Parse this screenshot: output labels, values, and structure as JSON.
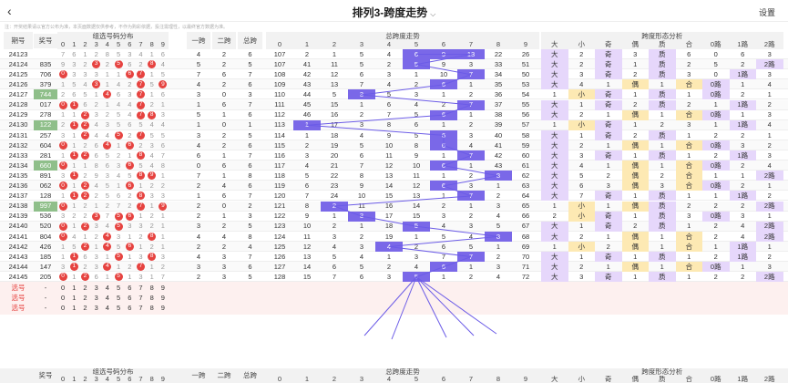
{
  "header": {
    "title": "排列3-跨度走势",
    "back_icon": "‹",
    "title_chevron": "⌵",
    "settings_label": "设置"
  },
  "notice": "注：开奖结果请以官方公布为准，本页面数据仅供参考，不作为购彩依据，投注需理性，以最终官方数据为准。",
  "groups": {
    "digits": "组选号码分布",
    "yikua": "一跨",
    "erkua": "二跨",
    "zongkua": "总跨",
    "trend": "总跨度走势",
    "form": "跨度形态分析"
  },
  "cols": {
    "issue": "期号",
    "award": "奖号",
    "digits": [
      "0",
      "1",
      "2",
      "3",
      "4",
      "5",
      "6",
      "7",
      "8",
      "9"
    ],
    "trend": [
      "0",
      "1",
      "2",
      "3",
      "4",
      "5",
      "6",
      "7",
      "8",
      "9"
    ],
    "form": [
      "大",
      "小",
      "奇",
      "偶",
      "质",
      "合",
      "0路",
      "1路",
      "2路"
    ]
  },
  "rows": [
    {
      "issue": "24123",
      "award": "",
      "d": [
        7,
        6,
        1,
        2,
        8,
        5,
        3,
        4,
        1,
        6
      ],
      "y": "4",
      "e": "2",
      "z": "6",
      "t": [
        107,
        2,
        1,
        5,
        4,
        "6",
        "9",
        "13",
        22,
        26
      ],
      "f": [
        "大",
        "2",
        "奇",
        "3",
        "质",
        "6",
        "0",
        "6",
        "3"
      ]
    },
    {
      "issue": "24124",
      "award": "835",
      "d": [
        9,
        3,
        2,
        "3",
        2,
        "5",
        6,
        2,
        "8",
        4
      ],
      "y": "5",
      "e": "2",
      "z": "5",
      "t": [
        107,
        41,
        11,
        5,
        2,
        "5",
        9,
        3,
        33,
        51
      ],
      "f": [
        "大",
        "2",
        "奇",
        "1",
        "质",
        "2",
        "5",
        "2",
        "2路"
      ]
    },
    {
      "issue": "24125",
      "award": "706",
      "d": [
        "0",
        3,
        3,
        3,
        1,
        1,
        "6",
        "7",
        1,
        5
      ],
      "y": "7",
      "e": "6",
      "z": "7",
      "t": [
        108,
        42,
        12,
        6,
        3,
        1,
        10,
        "7",
        34,
        50
      ],
      "f": [
        "大",
        "3",
        "奇",
        "2",
        "质",
        "3",
        "0",
        "1路",
        "3"
      ]
    },
    {
      "issue": "24126",
      "award": "379",
      "d": [
        1,
        5,
        4,
        "3",
        1,
        4,
        2,
        "7",
        5,
        "9"
      ],
      "y": "4",
      "e": "2",
      "z": "6",
      "t": [
        109,
        43,
        13,
        7,
        4,
        2,
        "6",
        1,
        35,
        53
      ],
      "f": [
        "大",
        "4",
        "1",
        "偶",
        "1",
        "合",
        "0路",
        "1",
        "4"
      ]
    },
    {
      "issue": "24127",
      "award": "744",
      "d": [
        2,
        6,
        5,
        1,
        "4",
        6,
        3,
        "7",
        1,
        6
      ],
      "y": "3",
      "e": "0",
      "z": "3",
      "t": [
        110,
        44,
        5,
        "3",
        5,
        3,
        1,
        2,
        36,
        54
      ],
      "f": [
        "1",
        "小",
        "奇",
        "1",
        "质",
        "1",
        "0路",
        "2",
        "1"
      ]
    },
    {
      "issue": "24128",
      "award": "017",
      "d": [
        "0",
        "1",
        6,
        2,
        1,
        4,
        4,
        "7",
        2,
        1
      ],
      "y": "1",
      "e": "6",
      "z": "7",
      "t": [
        111,
        45,
        15,
        1,
        6,
        4,
        2,
        "7",
        37,
        55
      ],
      "f": [
        "大",
        "1",
        "奇",
        "2",
        "质",
        "2",
        "1",
        "1路",
        "2"
      ]
    },
    {
      "issue": "24129",
      "award": "278",
      "d": [
        1,
        1,
        "2",
        3,
        2,
        5,
        4,
        "7",
        "8",
        3
      ],
      "y": "5",
      "e": "1",
      "z": "6",
      "t": [
        112,
        46,
        16,
        2,
        7,
        5,
        "6",
        1,
        38,
        56
      ],
      "f": [
        "大",
        "2",
        "1",
        "偶",
        "1",
        "合",
        "0路",
        "1",
        "3"
      ]
    },
    {
      "issue": "24130",
      "award": "122",
      "d": [
        2,
        "1",
        "2",
        4,
        3,
        5,
        6,
        5,
        4,
        4
      ],
      "y": "1",
      "e": "0",
      "z": "1",
      "t": [
        113,
        "1",
        17,
        3,
        8,
        6,
        1,
        2,
        39,
        57
      ],
      "f": [
        "1",
        "小",
        "奇",
        "1",
        "2",
        "3",
        "1",
        "1路",
        "4"
      ]
    },
    {
      "issue": "24131",
      "award": "257",
      "d": [
        3,
        1,
        "2",
        4,
        4,
        "5",
        2,
        "7",
        5,
        5
      ],
      "y": "3",
      "e": "2",
      "z": "5",
      "t": [
        114,
        1,
        18,
        4,
        9,
        5,
        "6",
        3,
        40,
        58
      ],
      "f": [
        "大",
        "1",
        "奇",
        "2",
        "质",
        "1",
        "2",
        "2",
        "1"
      ]
    },
    {
      "issue": "24132",
      "award": "604",
      "d": [
        "0",
        1,
        2,
        6,
        "4",
        1,
        "6",
        2,
        3,
        6
      ],
      "y": "4",
      "e": "2",
      "z": "6",
      "t": [
        115,
        2,
        19,
        5,
        10,
        8,
        "6",
        4,
        41,
        59
      ],
      "f": [
        "大",
        "2",
        "1",
        "偶",
        "1",
        "合",
        "0路",
        "3",
        "2"
      ]
    },
    {
      "issue": "24133",
      "award": "281",
      "d": [
        1,
        "1",
        "2",
        6,
        5,
        2,
        1,
        "8",
        4,
        7
      ],
      "y": "6",
      "e": "1",
      "z": "7",
      "t": [
        116,
        3,
        20,
        6,
        11,
        9,
        1,
        "7",
        42,
        60
      ],
      "f": [
        "大",
        "3",
        "奇",
        "1",
        "质",
        "1",
        "2",
        "1路",
        "3"
      ]
    },
    {
      "issue": "24134",
      "award": "660",
      "d": [
        "0",
        1,
        1,
        8,
        6,
        3,
        "6",
        5,
        4,
        8
      ],
      "y": "0",
      "e": "6",
      "z": "6",
      "t": [
        117,
        4,
        21,
        7,
        12,
        10,
        "6",
        1,
        43,
        61
      ],
      "f": [
        "大",
        "4",
        "1",
        "偶",
        "1",
        "合",
        "0路",
        "2",
        "4"
      ]
    },
    {
      "issue": "24135",
      "award": "891",
      "d": [
        3,
        "1",
        2,
        9,
        3,
        4,
        5,
        "8",
        "9",
        1
      ],
      "y": "7",
      "e": "1",
      "z": "8",
      "t": [
        118,
        5,
        22,
        8,
        13,
        11,
        1,
        2,
        "8",
        62
      ],
      "f": [
        "大",
        "5",
        "2",
        "偶",
        "2",
        "合",
        "1",
        "1",
        "2路"
      ]
    },
    {
      "issue": "24136",
      "award": "062",
      "d": [
        "0",
        1,
        "2",
        4,
        5,
        1,
        "6",
        1,
        2,
        2
      ],
      "y": "2",
      "e": "4",
      "z": "6",
      "t": [
        119,
        6,
        23,
        9,
        14,
        12,
        "6",
        3,
        1,
        63
      ],
      "f": [
        "大",
        "6",
        "3",
        "偶",
        "3",
        "合",
        "0路",
        "2",
        "1"
      ]
    },
    {
      "issue": "24137",
      "award": "128",
      "d": [
        1,
        "1",
        "2",
        2,
        5,
        6,
        2,
        "8",
        3,
        3
      ],
      "y": "1",
      "e": "6",
      "z": "7",
      "t": [
        120,
        7,
        24,
        10,
        15,
        13,
        1,
        "7",
        2,
        64
      ],
      "f": [
        "大",
        "7",
        "奇",
        "1",
        "质",
        "1",
        "1",
        "1路",
        "2"
      ]
    },
    {
      "issue": "24138",
      "award": "997",
      "d": [
        "0",
        1,
        2,
        1,
        2,
        7,
        2,
        "7",
        1,
        "9"
      ],
      "y": "2",
      "e": "0",
      "z": "2",
      "t": [
        121,
        8,
        "2",
        11,
        16,
        14,
        2,
        1,
        3,
        65
      ],
      "f": [
        "1",
        "小",
        "1",
        "偶",
        "质",
        "2",
        "2",
        "2",
        "2路"
      ]
    },
    {
      "issue": "24139",
      "award": "536",
      "d": [
        3,
        2,
        2,
        "3",
        7,
        "5",
        "6",
        1,
        2,
        1
      ],
      "y": "2",
      "e": "1",
      "z": "3",
      "t": [
        122,
        9,
        1,
        "3",
        17,
        15,
        3,
        2,
        4,
        66
      ],
      "f": [
        "2",
        "小",
        "奇",
        "1",
        "质",
        "3",
        "0路",
        "3",
        "1"
      ]
    },
    {
      "issue": "24140",
      "award": "520",
      "d": [
        "0",
        1,
        "2",
        3,
        4,
        "5",
        3,
        3,
        2,
        1
      ],
      "y": "3",
      "e": "2",
      "z": "5",
      "t": [
        123,
        10,
        2,
        1,
        18,
        "5",
        4,
        3,
        5,
        67
      ],
      "f": [
        "大",
        "1",
        "奇",
        "2",
        "质",
        "1",
        "2",
        "4",
        "2路"
      ]
    },
    {
      "issue": "24141",
      "award": "804",
      "d": [
        "0",
        4,
        1,
        2,
        "4",
        3,
        1,
        2,
        "8",
        1
      ],
      "y": "4",
      "e": "4",
      "z": "8",
      "t": [
        124,
        11,
        3,
        2,
        19,
        1,
        5,
        4,
        "8",
        68
      ],
      "f": [
        "大",
        "2",
        "1",
        "偶",
        "1",
        "合",
        "2",
        "4",
        "2路"
      ]
    },
    {
      "issue": "24142",
      "award": "426",
      "d": [
        1,
        5,
        "2",
        1,
        "4",
        5,
        "6",
        1,
        2,
        1
      ],
      "y": "2",
      "e": "2",
      "z": "4",
      "t": [
        125,
        12,
        4,
        3,
        "4",
        2,
        6,
        5,
        1,
        69
      ],
      "f": [
        "1",
        "小",
        "2",
        "偶",
        "1",
        "合",
        "1",
        "1路",
        "1"
      ]
    },
    {
      "issue": "24143",
      "award": "185",
      "d": [
        1,
        "1",
        6,
        3,
        1,
        "5",
        1,
        3,
        "8",
        3
      ],
      "y": "4",
      "e": "3",
      "z": "7",
      "t": [
        126,
        13,
        5,
        4,
        1,
        3,
        7,
        "7",
        2,
        70
      ],
      "f": [
        "大",
        "1",
        "奇",
        "1",
        "质",
        "1",
        "2",
        "1路",
        "2"
      ]
    },
    {
      "issue": "24144",
      "award": "147",
      "d": [
        3,
        "1",
        2,
        3,
        "4",
        1,
        2,
        "7",
        1,
        2
      ],
      "y": "3",
      "e": "3",
      "z": "6",
      "t": [
        127,
        14,
        6,
        5,
        2,
        4,
        "6",
        1,
        3,
        71
      ],
      "f": [
        "大",
        "2",
        "1",
        "偶",
        "1",
        "合",
        "0路",
        "1",
        "3"
      ]
    },
    {
      "issue": "24145",
      "award": "205",
      "d": [
        "0",
        1,
        "2",
        6,
        1,
        "5",
        1,
        3,
        1,
        7
      ],
      "y": "2",
      "e": "3",
      "z": "5",
      "t": [
        128,
        15,
        7,
        6,
        3,
        "5",
        1,
        2,
        4,
        72
      ],
      "f": [
        "大",
        "3",
        "奇",
        "1",
        "质",
        "1",
        "2",
        "2",
        "2路"
      ]
    }
  ],
  "select_rows": [
    {
      "label": "选号",
      "digits": [
        "0",
        "1",
        "2",
        "3",
        "4",
        "5",
        "6",
        "7",
        "8",
        "9"
      ]
    },
    {
      "label": "选号",
      "digits": [
        "0",
        "1",
        "2",
        "3",
        "4",
        "5",
        "6",
        "7",
        "8",
        "9"
      ]
    },
    {
      "label": "选号",
      "digits": [
        "0",
        "1",
        "2",
        "3",
        "4",
        "5",
        "6",
        "7",
        "8",
        "9"
      ]
    }
  ],
  "dash": "-"
}
